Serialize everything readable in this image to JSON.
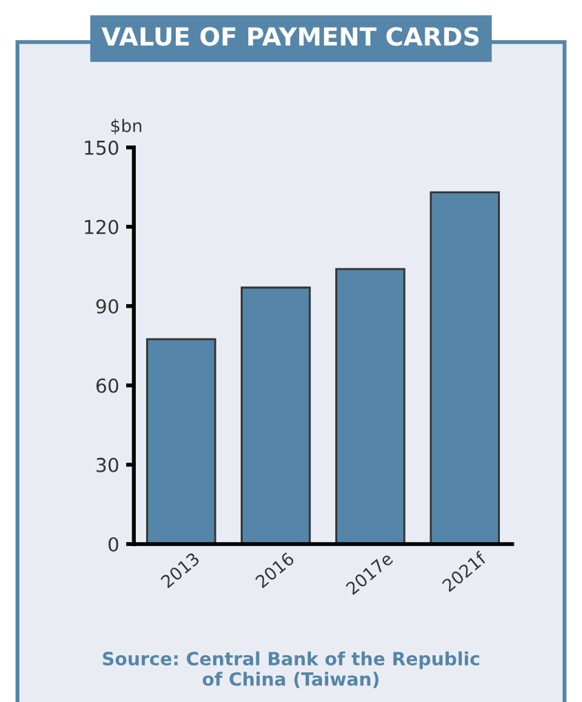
{
  "chart_data": {
    "type": "bar",
    "title": "VALUE OF PAYMENT CARDS",
    "ylabel": "$bn",
    "categories": [
      "2013",
      "2016",
      "2017e",
      "2021f"
    ],
    "values": [
      77.5,
      97,
      104,
      133
    ],
    "color": "#5585a8",
    "ylim": [
      0,
      150
    ],
    "yticks": [
      0,
      30,
      60,
      90,
      120,
      150
    ],
    "grid": false,
    "annotations": [
      "Source: Central Bank of the Republic\nof China (Taiwan)"
    ]
  }
}
